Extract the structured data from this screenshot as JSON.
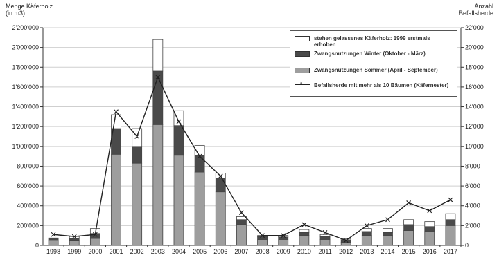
{
  "chart_data": {
    "type": "bar",
    "stacked": true,
    "categories": [
      "1998",
      "1999",
      "2000",
      "2001",
      "2002",
      "2003",
      "2004",
      "2005",
      "2006",
      "2007",
      "2008",
      "2009",
      "2010",
      "2011",
      "2012",
      "2013",
      "2014",
      "2015",
      "2016",
      "2017"
    ],
    "ylabel_left": "Menge Käferholz\n(in m3)",
    "ylabel_right": "Anzahl\nBefallsherde",
    "ylim_left": [
      0,
      2200000
    ],
    "ylim_right": [
      0,
      22000
    ],
    "yticks_left": [
      "0",
      "200'000",
      "400'000",
      "600'000",
      "800'000",
      "1'000'000",
      "1'200'000",
      "1'400'000",
      "1'600'000",
      "1'800'000",
      "2'000'000",
      "2'200'000"
    ],
    "yticks_right": [
      "0",
      "2'000",
      "4'000",
      "6'000",
      "8'000",
      "10'000",
      "12'000",
      "14'000",
      "16'000",
      "18'000",
      "20'000",
      "22'000"
    ],
    "grid": true,
    "legend_position": "top-right",
    "series": [
      {
        "name": "Zwangsnutzungen Sommer (April - September)",
        "color": "#9e9e9e",
        "values": [
          50000,
          45000,
          70000,
          920000,
          830000,
          1220000,
          910000,
          740000,
          540000,
          210000,
          55000,
          55000,
          100000,
          60000,
          30000,
          100000,
          100000,
          150000,
          140000,
          200000
        ]
      },
      {
        "name": "Zwangsnutzungen Winter (Oktober - März)",
        "color": "#4a4a4a",
        "values": [
          25000,
          25000,
          50000,
          260000,
          170000,
          540000,
          300000,
          170000,
          140000,
          50000,
          35000,
          30000,
          30000,
          30000,
          25000,
          40000,
          30000,
          60000,
          50000,
          60000
        ]
      },
      {
        "name": "stehen gelassenes Käferholz: 1999 erstmals erhoben",
        "color": "#ffffff",
        "values": [
          0,
          20000,
          50000,
          140000,
          180000,
          320000,
          150000,
          100000,
          50000,
          30000,
          10000,
          15000,
          30000,
          20000,
          10000,
          30000,
          40000,
          50000,
          50000,
          60000
        ]
      }
    ],
    "line_series": {
      "name": "Befallsherde mit mehr als 10 Bäumen (Käfernester)",
      "axis": "right",
      "values": [
        1100,
        900,
        1100,
        13500,
        11000,
        17000,
        12500,
        9000,
        7000,
        3300,
        1000,
        1000,
        2100,
        1300,
        500,
        2000,
        2600,
        4300,
        3500,
        4600
      ]
    }
  },
  "legend": {
    "item1": "stehen gelassenes Käferholz: 1999 erstmals erhoben",
    "item2": "Zwangsnutzungen Winter (Oktober - März)",
    "item3": "Zwangsnutzungen Sommer (April - September)",
    "item4": "Befallsherde mit mehr als 10 Bäumen (Käfernester)"
  }
}
